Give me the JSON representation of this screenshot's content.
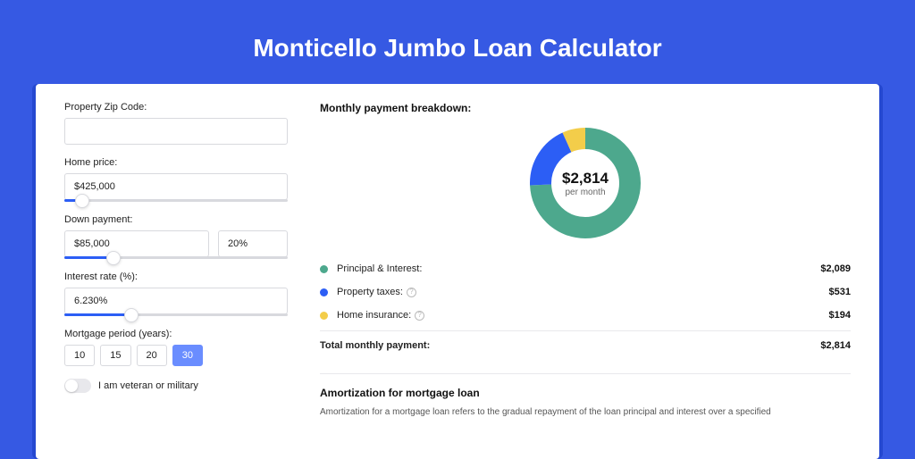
{
  "title": "Monticello Jumbo Loan Calculator",
  "form": {
    "zip": {
      "label": "Property Zip Code:",
      "value": ""
    },
    "price": {
      "label": "Home price:",
      "value": "$425,000",
      "slider_pct": 8
    },
    "down": {
      "label": "Down payment:",
      "value": "$85,000",
      "pct_value": "20%",
      "slider_pct": 22
    },
    "rate": {
      "label": "Interest rate (%):",
      "value": "6.230%",
      "slider_pct": 30
    },
    "period": {
      "label": "Mortgage period (years):",
      "options": [
        "10",
        "15",
        "20",
        "30"
      ],
      "selected_index": 3
    },
    "veteran": {
      "label": "I am veteran or military",
      "checked": false
    }
  },
  "breakdown": {
    "title": "Monthly payment breakdown:",
    "donut": {
      "amount": "$2,814",
      "sub": "per month",
      "inner_radius": 38,
      "outer_radius": 62,
      "segments": [
        {
          "key": "principal",
          "value": 2089,
          "color": "#4da88d"
        },
        {
          "key": "taxes",
          "value": 531,
          "color": "#2c5ef5"
        },
        {
          "key": "insurance",
          "value": 194,
          "color": "#f3cd4a"
        }
      ],
      "background_color": "#ffffff"
    },
    "legend": [
      {
        "label": "Principal & Interest:",
        "value": "$2,089",
        "color": "#4da88d",
        "info": false
      },
      {
        "label": "Property taxes:",
        "value": "$531",
        "color": "#2c5ef5",
        "info": true
      },
      {
        "label": "Home insurance:",
        "value": "$194",
        "color": "#f3cd4a",
        "info": true
      }
    ],
    "total": {
      "label": "Total monthly payment:",
      "value": "$2,814"
    }
  },
  "amortization": {
    "title": "Amortization for mortgage loan",
    "text": "Amortization for a mortgage loan refers to the gradual repayment of the loan principal and interest over a specified"
  },
  "colors": {
    "page_bg": "#3659e3",
    "outer_card": "#2548d0",
    "card_bg": "#ffffff",
    "accent": "#2c5ef5",
    "border": "#d8d9de"
  }
}
